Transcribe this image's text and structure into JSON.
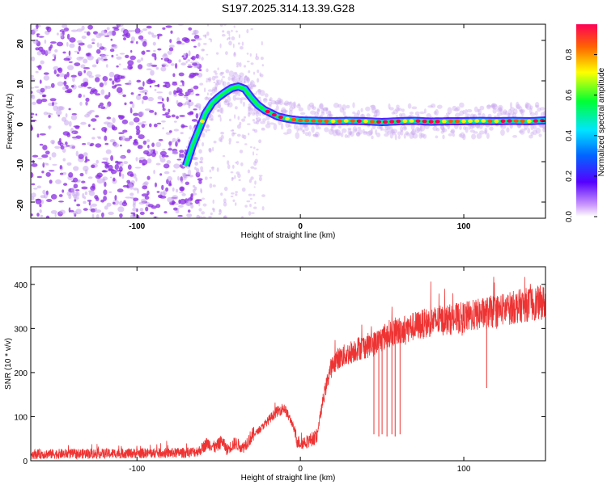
{
  "title": "S197.2025.314.13.39.G28",
  "colors": {
    "line": "#ee3333",
    "frame": "#000000",
    "noise": "#8a2be2",
    "noise_light": "#c9a6ee"
  },
  "chart_data": [
    {
      "type": "heatmap",
      "name": "spectrogram",
      "xlabel": "Height of straight line (km)",
      "ylabel": "Frequency (Hz)",
      "xlim": [
        -165,
        150
      ],
      "ylim": [
        -24,
        24
      ],
      "xticks": [
        -100,
        0,
        100
      ],
      "xtick_labels": [
        "-100",
        "0",
        "100"
      ],
      "yticks": [
        -20,
        -10,
        0,
        10,
        20
      ],
      "ytick_labels": [
        "-20",
        "-10",
        "0",
        "10",
        "20"
      ],
      "ridge": {
        "x": [
          -70,
          -66,
          -62,
          -58,
          -54,
          -50,
          -46,
          -42,
          -38,
          -34,
          -30,
          -26,
          -22,
          -18,
          -14,
          -10,
          -6,
          -2,
          0,
          10,
          20,
          30,
          40,
          50,
          60,
          70,
          80,
          90,
          100,
          110,
          120,
          130,
          140,
          150
        ],
        "y": [
          -11,
          -6,
          -2,
          2,
          4.5,
          6,
          7.2,
          8.2,
          8.6,
          8,
          5.8,
          4,
          2.8,
          2,
          1.2,
          0.8,
          0.5,
          0.3,
          0.2,
          0.1,
          0,
          0.1,
          0,
          -0.2,
          0,
          0.1,
          -0.1,
          0,
          0,
          0.1,
          0,
          0.1,
          0,
          0.2
        ]
      },
      "noise_region_x": [
        -165,
        -65
      ]
    },
    {
      "type": "colorbar",
      "name": "colorbar",
      "label": "Normalized spectral amplitude",
      "range": [
        0,
        0.95
      ],
      "ticks": [
        0,
        0.2,
        0.4,
        0.6,
        0.8
      ],
      "tick_labels": [
        "0.0",
        "0.2",
        "0.4",
        "0.6",
        "0.8"
      ]
    },
    {
      "type": "line",
      "name": "snr",
      "xlabel": "Height of straight line (km)",
      "ylabel": "SNR (10 * v/v)",
      "xlim": [
        -165,
        150
      ],
      "ylim": [
        0,
        440
      ],
      "xticks": [
        -100,
        0,
        100
      ],
      "xtick_labels": [
        "-100",
        "0",
        "100"
      ],
      "yticks": [
        0,
        100,
        200,
        300,
        400
      ],
      "ytick_labels": [
        "0",
        "100",
        "200",
        "300",
        "400"
      ],
      "trend": {
        "x": [
          -165,
          -70,
          -62,
          -57,
          -52,
          -48,
          -45,
          -40,
          -35,
          -30,
          -25,
          -20,
          -15,
          -10,
          -5,
          -2,
          0,
          5,
          10,
          14,
          18,
          22,
          28,
          35,
          45,
          55,
          65,
          80,
          100,
          120,
          140,
          150
        ],
        "y": [
          15,
          18,
          22,
          40,
          30,
          45,
          25,
          40,
          30,
          55,
          70,
          90,
          110,
          120,
          85,
          45,
          40,
          45,
          55,
          140,
          205,
          230,
          240,
          255,
          265,
          290,
          300,
          315,
          325,
          340,
          355,
          360
        ]
      },
      "dips": [
        {
          "x": 45,
          "y": 60
        },
        {
          "x": 48,
          "y": 55
        },
        {
          "x": 50,
          "y": 60
        },
        {
          "x": 53,
          "y": 55
        },
        {
          "x": 56,
          "y": 60
        },
        {
          "x": 58,
          "y": 55
        },
        {
          "x": 61,
          "y": 60
        },
        {
          "x": 114,
          "y": 165
        }
      ]
    }
  ]
}
